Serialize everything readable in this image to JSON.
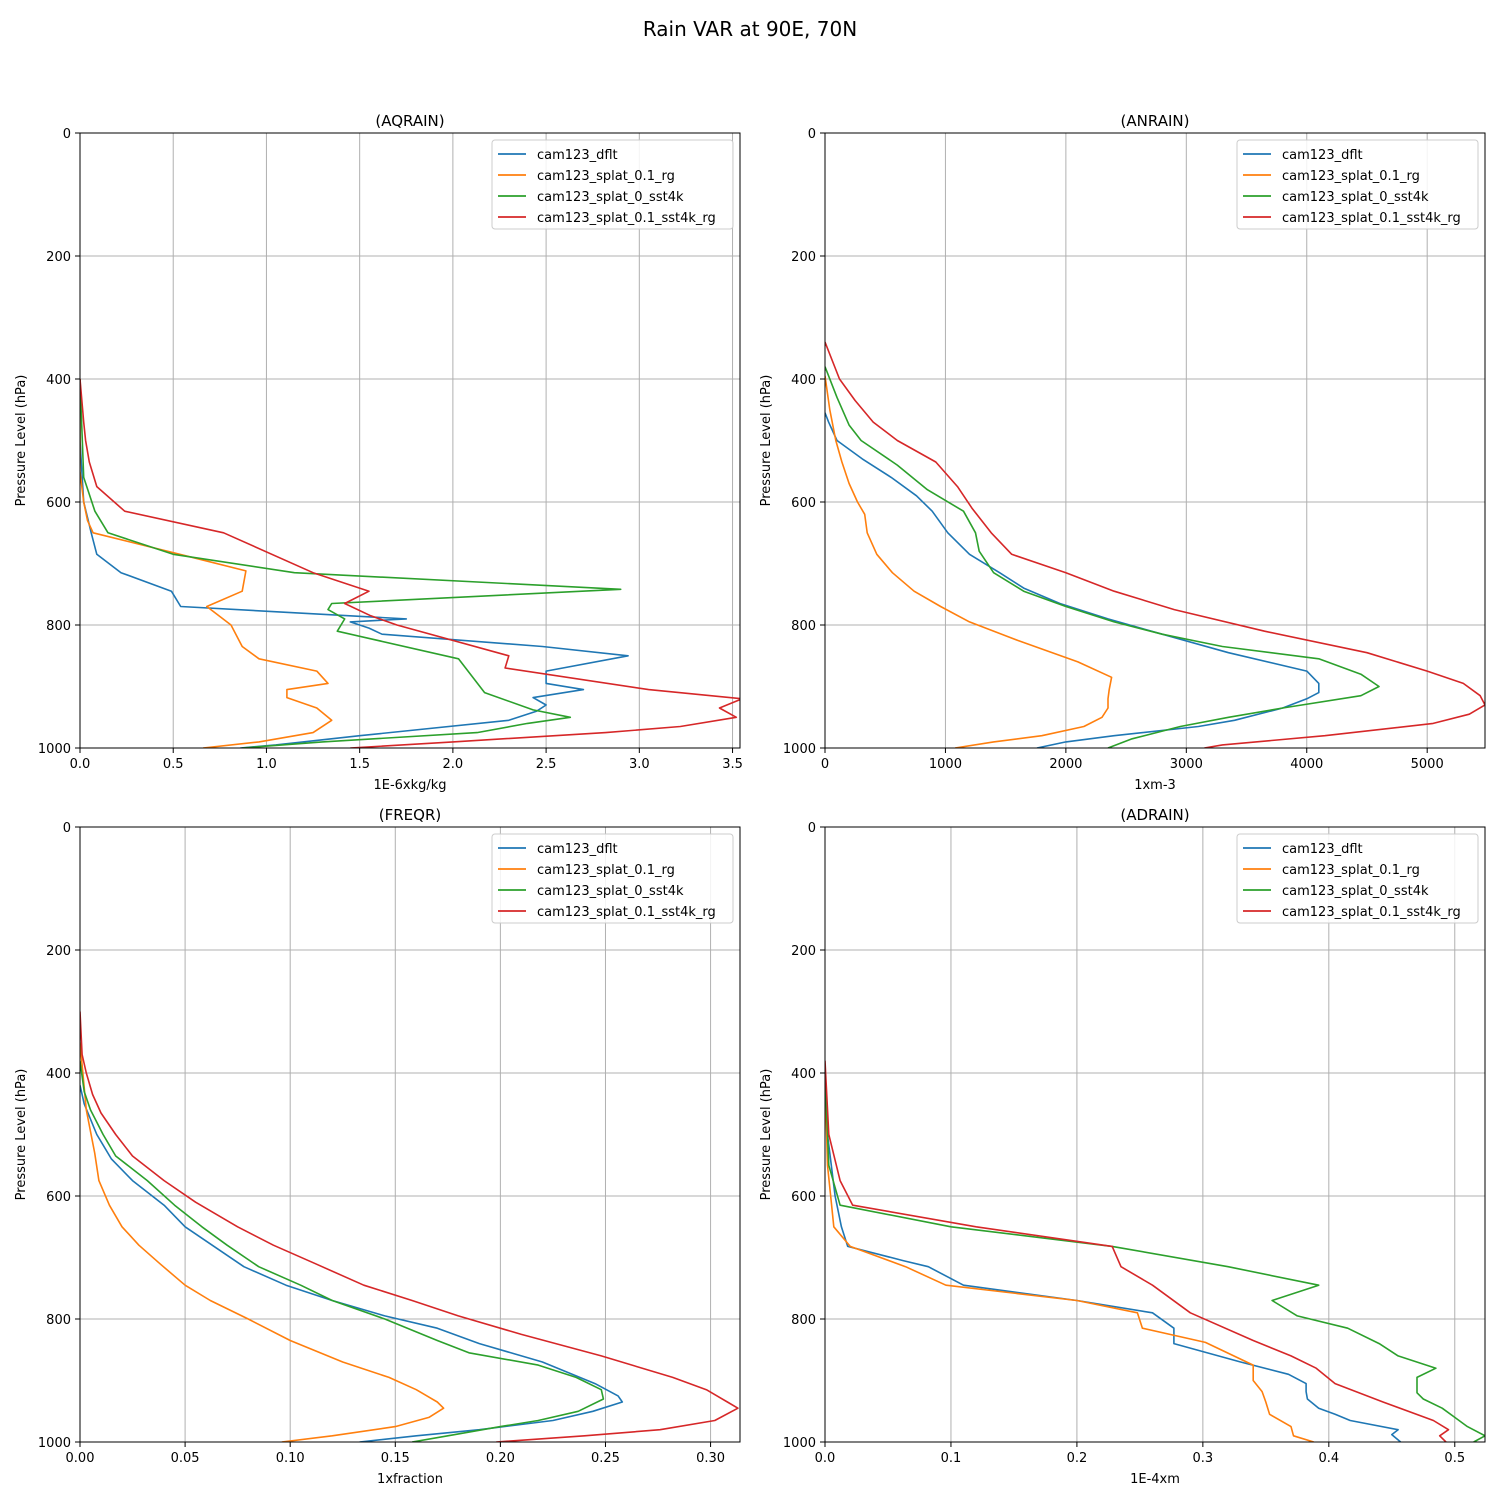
{
  "title": "Rain VAR at 90E, 70N",
  "colors": {
    "c0": "#1f77b4",
    "c1": "#ff7f0e",
    "c2": "#2ca02c",
    "c3": "#d62728"
  },
  "legend_labels": [
    "cam123_dflt",
    "cam123_splat_0.1_rg",
    "cam123_splat_0_sst4k",
    "cam123_splat_0.1_sst4k_rg"
  ],
  "chart_data": [
    {
      "type": "line",
      "title": "(AQRAIN)",
      "xlabel": "1E-6xkg/kg",
      "ylabel": "Pressure Level (hPa)",
      "xlim": [
        0,
        3.54
      ],
      "ylim": [
        1000,
        0
      ],
      "xticks": [
        "0.0",
        "0.5",
        "1.0",
        "1.5",
        "2.0",
        "2.5",
        "3.0",
        "3.5"
      ],
      "xtick_values": [
        0,
        0.5,
        1.0,
        1.5,
        2.0,
        2.5,
        3.0,
        3.5
      ],
      "yticks": [
        0,
        200,
        400,
        600,
        800,
        1000
      ],
      "legend_position": "upper right",
      "series": [
        {
          "name": "cam123_dflt",
          "p": [
            400,
            500,
            600,
            625,
            650,
            685,
            715,
            745,
            770,
            790,
            795,
            805,
            815,
            835,
            850,
            875,
            895,
            905,
            918,
            930,
            940,
            955,
            980,
            995,
            1000
          ],
          "v": [
            0,
            0,
            0.02,
            0.04,
            0.06,
            0.09,
            0.22,
            0.49,
            0.54,
            1.75,
            1.45,
            1.55,
            1.62,
            2.48,
            2.94,
            2.5,
            2.5,
            2.7,
            2.43,
            2.5,
            2.45,
            2.3,
            1.5,
            1.05,
            0.86
          ]
        },
        {
          "name": "cam123_splat_0.1_rg",
          "p": [
            400,
            550,
            600,
            630,
            650,
            690,
            712,
            745,
            770,
            800,
            835,
            855,
            875,
            895,
            905,
            918,
            935,
            955,
            975,
            990,
            1000
          ],
          "v": [
            0,
            0,
            0.02,
            0.04,
            0.07,
            0.6,
            0.89,
            0.87,
            0.68,
            0.81,
            0.87,
            0.96,
            1.27,
            1.33,
            1.11,
            1.11,
            1.27,
            1.35,
            1.25,
            0.96,
            0.66
          ]
        },
        {
          "name": "cam123_splat_0_sst4k",
          "p": [
            400,
            560,
            615,
            650,
            685,
            715,
            742,
            765,
            775,
            790,
            810,
            855,
            910,
            938,
            950,
            960,
            975,
            990,
            1000
          ],
          "v": [
            0,
            0.02,
            0.08,
            0.15,
            0.5,
            1.15,
            2.9,
            1.35,
            1.33,
            1.42,
            1.38,
            2.03,
            2.17,
            2.43,
            2.63,
            2.4,
            2.13,
            1.3,
            0.87
          ]
        },
        {
          "name": "cam123_splat_0.1_sst4k_rg",
          "p": [
            400,
            470,
            500,
            535,
            575,
            615,
            650,
            715,
            745,
            765,
            785,
            800,
            850,
            870,
            905,
            920,
            935,
            950,
            965,
            975,
            990,
            1000
          ],
          "v": [
            0,
            0.02,
            0.03,
            0.05,
            0.09,
            0.24,
            0.77,
            1.25,
            1.55,
            1.42,
            1.56,
            1.7,
            2.3,
            2.28,
            3.05,
            3.55,
            3.43,
            3.52,
            3.22,
            2.82,
            2.0,
            1.45
          ]
        }
      ]
    },
    {
      "type": "line",
      "title": "(ANRAIN)",
      "xlabel": "1xm-3",
      "ylabel": "Pressure Level (hPa)",
      "xlim": [
        0,
        5480
      ],
      "ylim": [
        1000,
        0
      ],
      "xticks": [
        "0",
        "1000",
        "2000",
        "3000",
        "4000",
        "5000"
      ],
      "xtick_values": [
        0,
        1000,
        2000,
        3000,
        4000,
        5000
      ],
      "yticks": [
        0,
        200,
        400,
        600,
        800,
        1000
      ],
      "legend_position": "upper right",
      "series": [
        {
          "name": "cam123_dflt",
          "p": [
            455,
            470,
            500,
            530,
            560,
            590,
            615,
            650,
            685,
            715,
            740,
            765,
            790,
            815,
            845,
            875,
            895,
            910,
            920,
            935,
            955,
            965,
            980,
            990,
            1000
          ],
          "v": [
            0,
            30,
            100,
            310,
            550,
            760,
            890,
            1020,
            1200,
            1450,
            1650,
            1950,
            2350,
            2800,
            3350,
            4000,
            4100,
            4100,
            4000,
            3800,
            3400,
            3100,
            2400,
            2000,
            1760
          ]
        },
        {
          "name": "cam123_splat_0.1_rg",
          "p": [
            395,
            450,
            500,
            535,
            570,
            600,
            620,
            650,
            685,
            715,
            745,
            770,
            795,
            825,
            860,
            885,
            905,
            920,
            935,
            950,
            965,
            980,
            990,
            1000
          ],
          "v": [
            0,
            40,
            90,
            140,
            200,
            270,
            330,
            350,
            430,
            560,
            740,
            960,
            1200,
            1600,
            2100,
            2380,
            2360,
            2350,
            2350,
            2300,
            2150,
            1800,
            1400,
            1080
          ]
        },
        {
          "name": "cam123_splat_0_sst4k",
          "p": [
            380,
            430,
            475,
            500,
            540,
            580,
            615,
            650,
            680,
            715,
            745,
            770,
            795,
            815,
            835,
            855,
            880,
            900,
            915,
            935,
            950,
            965,
            985,
            1000
          ],
          "v": [
            0,
            100,
            200,
            300,
            600,
            850,
            1150,
            1250,
            1280,
            1400,
            1650,
            2000,
            2400,
            2800,
            3300,
            4100,
            4450,
            4600,
            4450,
            3800,
            3350,
            2950,
            2550,
            2350
          ]
        },
        {
          "name": "cam123_splat_0.1_sst4k_rg",
          "p": [
            340,
            400,
            435,
            470,
            500,
            535,
            575,
            610,
            650,
            685,
            715,
            745,
            775,
            810,
            845,
            875,
            895,
            915,
            930,
            945,
            960,
            980,
            995,
            1000
          ],
          "v": [
            0,
            120,
            250,
            400,
            600,
            920,
            1100,
            1220,
            1380,
            1550,
            2000,
            2400,
            2900,
            3650,
            4500,
            5000,
            5300,
            5440,
            5480,
            5350,
            5050,
            4150,
            3300,
            3150
          ]
        }
      ]
    },
    {
      "type": "line",
      "title": "(FREQR)",
      "xlabel": "1xfraction",
      "ylabel": "Pressure Level (hPa)",
      "xlim": [
        0,
        0.314
      ],
      "ylim": [
        1000,
        0
      ],
      "xticks": [
        "0.00",
        "0.05",
        "0.10",
        "0.15",
        "0.20",
        "0.25",
        "0.30"
      ],
      "xtick_values": [
        0,
        0.05,
        0.1,
        0.15,
        0.2,
        0.25,
        0.3
      ],
      "yticks": [
        0,
        200,
        400,
        600,
        800,
        1000
      ],
      "legend_position": "upper right",
      "series": [
        {
          "name": "cam123_dflt",
          "p": [
            420,
            450,
            500,
            540,
            575,
            615,
            650,
            715,
            745,
            770,
            795,
            815,
            840,
            870,
            905,
            925,
            935,
            950,
            965,
            980,
            990,
            1000
          ],
          "v": [
            0,
            0.002,
            0.008,
            0.015,
            0.025,
            0.04,
            0.05,
            0.078,
            0.098,
            0.12,
            0.145,
            0.17,
            0.19,
            0.22,
            0.245,
            0.256,
            0.258,
            0.244,
            0.225,
            0.19,
            0.16,
            0.133
          ]
        },
        {
          "name": "cam123_splat_0.1_rg",
          "p": [
            350,
            460,
            530,
            575,
            615,
            650,
            680,
            710,
            745,
            770,
            800,
            835,
            870,
            895,
            915,
            935,
            945,
            960,
            975,
            990,
            1000
          ],
          "v": [
            0,
            0.003,
            0.007,
            0.009,
            0.014,
            0.02,
            0.028,
            0.038,
            0.05,
            0.062,
            0.08,
            0.1,
            0.125,
            0.147,
            0.16,
            0.17,
            0.173,
            0.166,
            0.15,
            0.12,
            0.096
          ]
        },
        {
          "name": "cam123_splat_0_sst4k",
          "p": [
            380,
            430,
            460,
            500,
            535,
            575,
            615,
            650,
            680,
            715,
            745,
            770,
            800,
            835,
            855,
            875,
            895,
            915,
            930,
            950,
            965,
            975,
            990,
            1000
          ],
          "v": [
            0,
            0.002,
            0.005,
            0.011,
            0.017,
            0.032,
            0.045,
            0.058,
            0.07,
            0.085,
            0.105,
            0.12,
            0.145,
            0.17,
            0.185,
            0.218,
            0.236,
            0.248,
            0.249,
            0.237,
            0.218,
            0.2,
            0.175,
            0.158
          ]
        },
        {
          "name": "cam123_splat_0.1_sst4k_rg",
          "p": [
            300,
            370,
            400,
            435,
            465,
            500,
            535,
            575,
            610,
            650,
            680,
            710,
            745,
            770,
            795,
            825,
            860,
            895,
            915,
            935,
            945,
            965,
            980,
            990,
            1000
          ],
          "v": [
            0,
            0.001,
            0.003,
            0.006,
            0.01,
            0.017,
            0.025,
            0.04,
            0.055,
            0.075,
            0.092,
            0.112,
            0.135,
            0.158,
            0.18,
            0.21,
            0.248,
            0.282,
            0.298,
            0.308,
            0.313,
            0.302,
            0.276,
            0.24,
            0.198
          ]
        }
      ]
    },
    {
      "type": "line",
      "title": "(ADRAIN)",
      "xlabel": "1E-4xm",
      "ylabel": "Pressure Level (hPa)",
      "xlim": [
        0,
        0.524
      ],
      "ylim": [
        1000,
        0
      ],
      "xticks": [
        "0.0",
        "0.1",
        "0.2",
        "0.3",
        "0.4",
        "0.5"
      ],
      "xtick_values": [
        0,
        0.1,
        0.2,
        0.3,
        0.4,
        0.5
      ],
      "yticks": [
        0,
        200,
        400,
        600,
        800,
        1000
      ],
      "legend_position": "upper right",
      "series": [
        {
          "name": "cam123_dflt",
          "p": [
            400,
            500,
            600,
            650,
            682,
            705,
            715,
            745,
            770,
            790,
            815,
            840,
            870,
            890,
            905,
            918,
            930,
            945,
            955,
            965,
            980,
            988,
            1000
          ],
          "v": [
            0,
            0.002,
            0.008,
            0.013,
            0.018,
            0.062,
            0.082,
            0.11,
            0.2,
            0.26,
            0.277,
            0.277,
            0.33,
            0.368,
            0.382,
            0.382,
            0.383,
            0.392,
            0.405,
            0.417,
            0.455,
            0.45,
            0.457
          ]
        },
        {
          "name": "cam123_splat_0.1_rg",
          "p": [
            400,
            550,
            610,
            650,
            682,
            715,
            745,
            770,
            790,
            815,
            838,
            875,
            900,
            918,
            935,
            955,
            975,
            990,
            1000
          ],
          "v": [
            0,
            0.002,
            0.005,
            0.007,
            0.02,
            0.064,
            0.096,
            0.2,
            0.248,
            0.252,
            0.302,
            0.34,
            0.34,
            0.347,
            0.35,
            0.353,
            0.37,
            0.372,
            0.388
          ]
        },
        {
          "name": "cam123_splat_0_sst4k",
          "p": [
            400,
            550,
            615,
            650,
            682,
            715,
            745,
            770,
            795,
            815,
            840,
            860,
            880,
            895,
            905,
            920,
            930,
            945,
            960,
            975,
            990,
            1000
          ],
          "v": [
            0,
            0.003,
            0.012,
            0.1,
            0.228,
            0.32,
            0.392,
            0.355,
            0.375,
            0.415,
            0.44,
            0.455,
            0.485,
            0.47,
            0.47,
            0.47,
            0.475,
            0.49,
            0.5,
            0.51,
            0.524,
            0.515
          ]
        },
        {
          "name": "cam123_splat_0.1_sst4k_rg",
          "p": [
            380,
            500,
            575,
            615,
            650,
            682,
            715,
            745,
            790,
            835,
            860,
            880,
            905,
            935,
            965,
            980,
            990,
            1000
          ],
          "v": [
            0,
            0.003,
            0.012,
            0.022,
            0.12,
            0.228,
            0.235,
            0.26,
            0.29,
            0.34,
            0.37,
            0.39,
            0.405,
            0.443,
            0.483,
            0.495,
            0.488,
            0.493
          ]
        }
      ]
    }
  ]
}
